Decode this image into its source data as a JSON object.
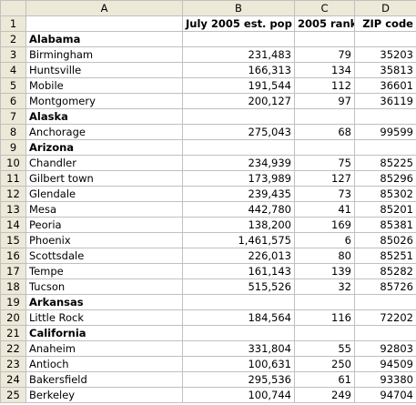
{
  "columns": [
    "A",
    "B",
    "C",
    "D"
  ],
  "rows": [
    {
      "n": "1",
      "a": "",
      "b": "July 2005 est. pop",
      "c": "2005 rank",
      "d": "ZIP code",
      "type": "header"
    },
    {
      "n": "2",
      "a": "Alabama",
      "b": "",
      "c": "",
      "d": "",
      "type": "state"
    },
    {
      "n": "3",
      "a": "Birmingham",
      "b": "231,483",
      "c": "79",
      "d": "35203",
      "type": "data"
    },
    {
      "n": "4",
      "a": "Huntsville",
      "b": "166,313",
      "c": "134",
      "d": "35813",
      "type": "data"
    },
    {
      "n": "5",
      "a": "Mobile",
      "b": "191,544",
      "c": "112",
      "d": "36601",
      "type": "data"
    },
    {
      "n": "6",
      "a": "Montgomery",
      "b": "200,127",
      "c": "97",
      "d": "36119",
      "type": "data"
    },
    {
      "n": "7",
      "a": "Alaska",
      "b": "",
      "c": "",
      "d": "",
      "type": "state"
    },
    {
      "n": "8",
      "a": "Anchorage",
      "b": "275,043",
      "c": "68",
      "d": "99599",
      "type": "data"
    },
    {
      "n": "9",
      "a": "Arizona",
      "b": "",
      "c": "",
      "d": "",
      "type": "state"
    },
    {
      "n": "10",
      "a": "Chandler",
      "b": "234,939",
      "c": "75",
      "d": "85225",
      "type": "data"
    },
    {
      "n": "11",
      "a": "Gilbert town",
      "b": "173,989",
      "c": "127",
      "d": "85296",
      "type": "data"
    },
    {
      "n": "12",
      "a": "Glendale",
      "b": "239,435",
      "c": "73",
      "d": "85302",
      "type": "data"
    },
    {
      "n": "13",
      "a": "Mesa",
      "b": "442,780",
      "c": "41",
      "d": "85201",
      "type": "data"
    },
    {
      "n": "14",
      "a": "Peoria",
      "b": "138,200",
      "c": "169",
      "d": "85381",
      "type": "data"
    },
    {
      "n": "15",
      "a": "Phoenix",
      "b": "1,461,575",
      "c": "6",
      "d": "85026",
      "type": "data"
    },
    {
      "n": "16",
      "a": "Scottsdale",
      "b": "226,013",
      "c": "80",
      "d": "85251",
      "type": "data"
    },
    {
      "n": "17",
      "a": "Tempe",
      "b": "161,143",
      "c": "139",
      "d": "85282",
      "type": "data"
    },
    {
      "n": "18",
      "a": "Tucson",
      "b": "515,526",
      "c": "32",
      "d": "85726",
      "type": "data"
    },
    {
      "n": "19",
      "a": "Arkansas",
      "b": "",
      "c": "",
      "d": "",
      "type": "state"
    },
    {
      "n": "20",
      "a": "Little Rock",
      "b": "184,564",
      "c": "116",
      "d": "72202",
      "type": "data"
    },
    {
      "n": "21",
      "a": "California",
      "b": "",
      "c": "",
      "d": "",
      "type": "state"
    },
    {
      "n": "22",
      "a": "Anaheim",
      "b": "331,804",
      "c": "55",
      "d": "92803",
      "type": "data"
    },
    {
      "n": "23",
      "a": "Antioch",
      "b": "100,631",
      "c": "250",
      "d": "94509",
      "type": "data"
    },
    {
      "n": "24",
      "a": "Bakersfield",
      "b": "295,536",
      "c": "61",
      "d": "93380",
      "type": "data"
    },
    {
      "n": "25",
      "a": "Berkeley",
      "b": "100,744",
      "c": "249",
      "d": "94704",
      "type": "data"
    }
  ]
}
